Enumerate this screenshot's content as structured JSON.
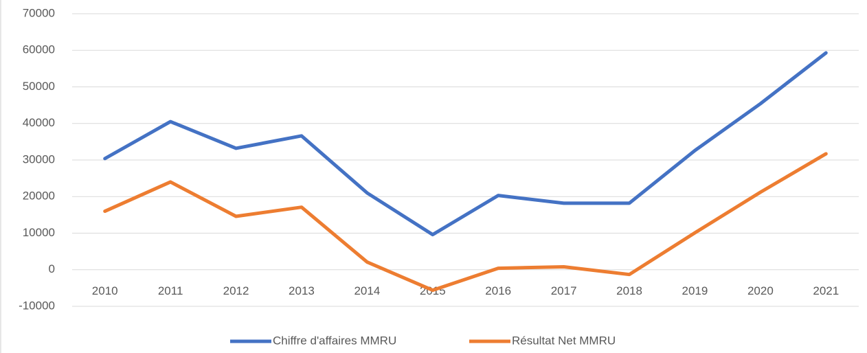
{
  "chart_data": {
    "type": "line",
    "categories": [
      "2010",
      "2011",
      "2012",
      "2013",
      "2014",
      "2015",
      "2016",
      "2017",
      "2018",
      "2019",
      "2020",
      "2021"
    ],
    "series": [
      {
        "name": "Chiffre d'affaires MMRU",
        "color": "#4472c4",
        "values": [
          30400,
          40500,
          33200,
          36600,
          21000,
          9600,
          20300,
          18200,
          18200,
          32600,
          45400,
          59300
        ]
      },
      {
        "name": "Résultat Net MMRU",
        "color": "#ed7d31",
        "values": [
          16000,
          24000,
          14600,
          17100,
          2100,
          -5600,
          400,
          800,
          -1300,
          10100,
          21200,
          31700
        ]
      }
    ],
    "ylim": [
      -10000,
      70000
    ],
    "yticks": [
      -10000,
      0,
      10000,
      20000,
      30000,
      40000,
      50000,
      60000,
      70000
    ],
    "grid": true,
    "legend": "bottom"
  }
}
